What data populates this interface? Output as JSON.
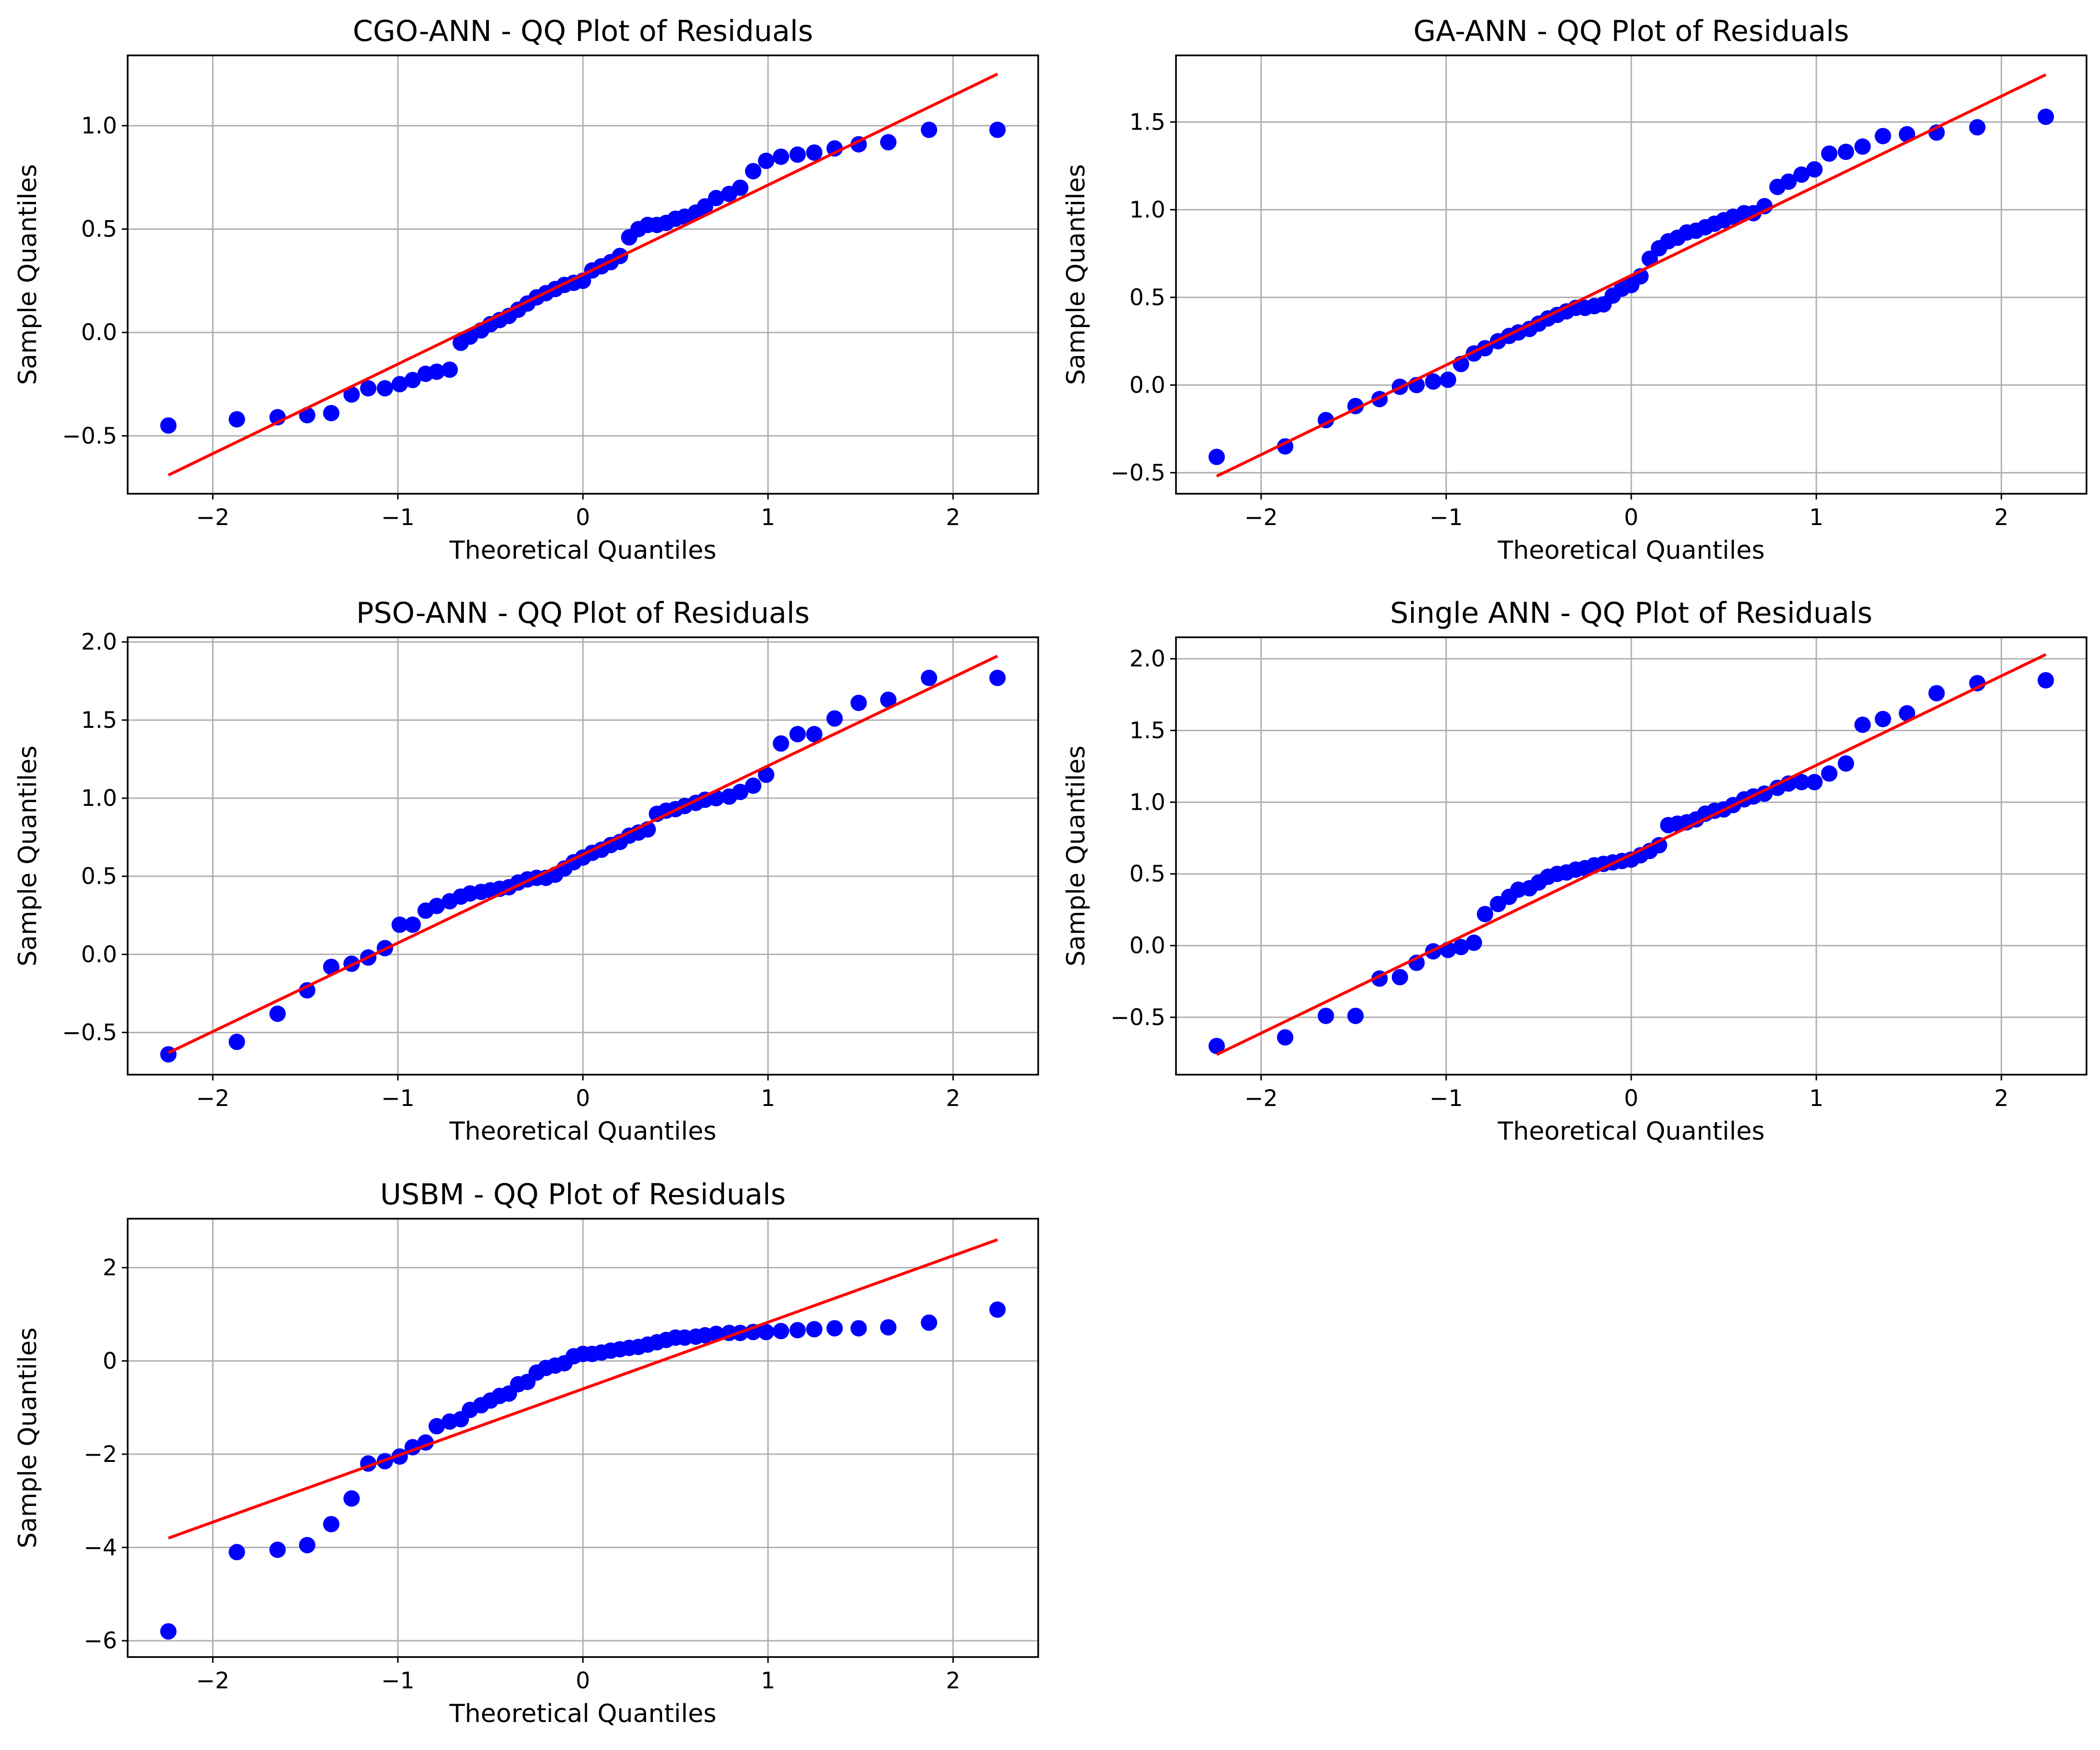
{
  "chart_data": [
    {
      "type": "scatter",
      "title": "CGO-ANN - QQ Plot of Residuals",
      "xlabel": "Theoretical Quantiles",
      "ylabel": "Sample Quantiles",
      "xlim": [
        -2.46,
        2.46
      ],
      "ylim": [
        -0.78,
        1.34
      ],
      "xticks": [
        -2,
        -1,
        0,
        1,
        2
      ],
      "xtick_labels": [
        "−2",
        "−1",
        "0",
        "1",
        "2"
      ],
      "yticks": [
        -0.5,
        0.0,
        0.5,
        1.0
      ],
      "ytick_labels": [
        "−0.5",
        "0.0",
        "0.5",
        "1.0"
      ],
      "grid": true,
      "point_color": "#0000ff",
      "line_color": "#ff0000",
      "line": {
        "x": [
          -2.24,
          2.24
        ],
        "y": [
          -0.69,
          1.25
        ]
      },
      "points": {
        "x": [
          -2.24,
          -1.87,
          -1.65,
          -1.49,
          -1.36,
          -1.25,
          -1.16,
          -1.07,
          -0.99,
          -0.92,
          -0.85,
          -0.79,
          -0.72,
          -0.66,
          -0.61,
          -0.55,
          -0.5,
          -0.45,
          -0.4,
          -0.35,
          -0.3,
          -0.25,
          -0.2,
          -0.15,
          -0.1,
          -0.05,
          0.0,
          0.05,
          0.1,
          0.15,
          0.2,
          0.25,
          0.3,
          0.35,
          0.4,
          0.45,
          0.5,
          0.55,
          0.61,
          0.66,
          0.72,
          0.79,
          0.85,
          0.92,
          0.99,
          1.07,
          1.16,
          1.25,
          1.36,
          1.49,
          1.65,
          1.87,
          2.24
        ],
        "y": [
          -0.45,
          -0.42,
          -0.41,
          -0.4,
          -0.39,
          -0.3,
          -0.27,
          -0.27,
          -0.25,
          -0.23,
          -0.2,
          -0.19,
          -0.18,
          -0.05,
          -0.02,
          0.01,
          0.04,
          0.06,
          0.08,
          0.11,
          0.14,
          0.17,
          0.19,
          0.21,
          0.23,
          0.24,
          0.25,
          0.3,
          0.32,
          0.34,
          0.37,
          0.46,
          0.5,
          0.52,
          0.52,
          0.53,
          0.55,
          0.56,
          0.58,
          0.61,
          0.65,
          0.67,
          0.7,
          0.78,
          0.83,
          0.85,
          0.86,
          0.87,
          0.89,
          0.91,
          0.92,
          0.98,
          0.98
        ]
      }
    },
    {
      "type": "scatter",
      "title": "GA-ANN - QQ Plot of Residuals",
      "xlabel": "Theoretical Quantiles",
      "ylabel": "Sample Quantiles",
      "xlim": [
        -2.46,
        2.46
      ],
      "ylim": [
        -0.62,
        1.88
      ],
      "xticks": [
        -2,
        -1,
        0,
        1,
        2
      ],
      "xtick_labels": [
        "−2",
        "−1",
        "0",
        "1",
        "2"
      ],
      "yticks": [
        -0.5,
        0.0,
        0.5,
        1.0,
        1.5
      ],
      "ytick_labels": [
        "−0.5",
        "0.0",
        "0.5",
        "1.0",
        "1.5"
      ],
      "grid": true,
      "point_color": "#0000ff",
      "line_color": "#ff0000",
      "line": {
        "x": [
          -2.24,
          2.24
        ],
        "y": [
          -0.52,
          1.77
        ]
      },
      "points": {
        "x": [
          -2.24,
          -1.87,
          -1.65,
          -1.49,
          -1.36,
          -1.25,
          -1.16,
          -1.07,
          -0.99,
          -0.92,
          -0.85,
          -0.79,
          -0.72,
          -0.66,
          -0.61,
          -0.55,
          -0.5,
          -0.45,
          -0.4,
          -0.35,
          -0.3,
          -0.25,
          -0.2,
          -0.15,
          -0.1,
          -0.05,
          0.0,
          0.05,
          0.1,
          0.15,
          0.2,
          0.25,
          0.3,
          0.35,
          0.4,
          0.45,
          0.5,
          0.55,
          0.61,
          0.66,
          0.72,
          0.79,
          0.85,
          0.92,
          0.99,
          1.07,
          1.16,
          1.25,
          1.36,
          1.49,
          1.65,
          1.87,
          2.24
        ],
        "y": [
          -0.41,
          -0.35,
          -0.2,
          -0.12,
          -0.08,
          -0.01,
          0.0,
          0.02,
          0.03,
          0.12,
          0.18,
          0.21,
          0.25,
          0.28,
          0.3,
          0.32,
          0.35,
          0.38,
          0.4,
          0.42,
          0.44,
          0.44,
          0.45,
          0.46,
          0.51,
          0.55,
          0.57,
          0.62,
          0.72,
          0.78,
          0.82,
          0.84,
          0.87,
          0.88,
          0.9,
          0.92,
          0.94,
          0.96,
          0.98,
          0.98,
          1.02,
          1.13,
          1.16,
          1.2,
          1.23,
          1.32,
          1.33,
          1.36,
          1.42,
          1.43,
          1.44,
          1.47,
          1.53
        ]
      }
    },
    {
      "type": "scatter",
      "title": "PSO-ANN - QQ Plot of Residuals",
      "xlabel": "Theoretical Quantiles",
      "ylabel": "Sample Quantiles",
      "xlim": [
        -2.46,
        2.46
      ],
      "ylim": [
        -0.77,
        2.03
      ],
      "xticks": [
        -2,
        -1,
        0,
        1,
        2
      ],
      "xtick_labels": [
        "−2",
        "−1",
        "0",
        "1",
        "2"
      ],
      "yticks": [
        -0.5,
        0.0,
        0.5,
        1.0,
        1.5,
        2.0
      ],
      "ytick_labels": [
        "−0.5",
        "0.0",
        "0.5",
        "1.0",
        "1.5",
        "2.0"
      ],
      "grid": true,
      "point_color": "#0000ff",
      "line_color": "#ff0000",
      "line": {
        "x": [
          -2.24,
          2.24
        ],
        "y": [
          -0.63,
          1.91
        ]
      },
      "points": {
        "x": [
          -2.24,
          -1.87,
          -1.65,
          -1.49,
          -1.36,
          -1.25,
          -1.16,
          -1.07,
          -0.99,
          -0.92,
          -0.85,
          -0.79,
          -0.72,
          -0.66,
          -0.61,
          -0.55,
          -0.5,
          -0.45,
          -0.4,
          -0.35,
          -0.3,
          -0.25,
          -0.2,
          -0.15,
          -0.1,
          -0.05,
          0.0,
          0.05,
          0.1,
          0.15,
          0.2,
          0.25,
          0.3,
          0.35,
          0.4,
          0.45,
          0.5,
          0.55,
          0.61,
          0.66,
          0.72,
          0.79,
          0.85,
          0.92,
          0.99,
          1.07,
          1.16,
          1.25,
          1.36,
          1.49,
          1.65,
          1.87,
          2.24
        ],
        "y": [
          -0.64,
          -0.56,
          -0.38,
          -0.23,
          -0.08,
          -0.06,
          -0.02,
          0.04,
          0.19,
          0.19,
          0.28,
          0.31,
          0.34,
          0.37,
          0.39,
          0.4,
          0.41,
          0.42,
          0.43,
          0.46,
          0.48,
          0.49,
          0.49,
          0.51,
          0.55,
          0.59,
          0.62,
          0.65,
          0.67,
          0.7,
          0.72,
          0.76,
          0.78,
          0.8,
          0.9,
          0.92,
          0.93,
          0.95,
          0.97,
          0.99,
          1.0,
          1.01,
          1.04,
          1.08,
          1.15,
          1.35,
          1.41,
          1.41,
          1.51,
          1.61,
          1.63,
          1.77,
          1.77
        ]
      }
    },
    {
      "type": "scatter",
      "title": "Single ANN - QQ Plot of Residuals",
      "xlabel": "Theoretical Quantiles",
      "ylabel": "Sample Quantiles",
      "xlim": [
        -2.46,
        2.46
      ],
      "ylim": [
        -0.9,
        2.15
      ],
      "xticks": [
        -2,
        -1,
        0,
        1,
        2
      ],
      "xtick_labels": [
        "−2",
        "−1",
        "0",
        "1",
        "2"
      ],
      "yticks": [
        -0.5,
        0.0,
        0.5,
        1.0,
        1.5,
        2.0
      ],
      "ytick_labels": [
        "−0.5",
        "0.0",
        "0.5",
        "1.0",
        "1.5",
        "2.0"
      ],
      "grid": true,
      "point_color": "#0000ff",
      "line_color": "#ff0000",
      "line": {
        "x": [
          -2.24,
          2.24
        ],
        "y": [
          -0.76,
          2.03
        ]
      },
      "points": {
        "x": [
          -2.24,
          -1.87,
          -1.65,
          -1.49,
          -1.36,
          -1.25,
          -1.16,
          -1.07,
          -0.99,
          -0.92,
          -0.85,
          -0.79,
          -0.72,
          -0.66,
          -0.61,
          -0.55,
          -0.5,
          -0.45,
          -0.4,
          -0.35,
          -0.3,
          -0.25,
          -0.2,
          -0.15,
          -0.1,
          -0.05,
          0.0,
          0.05,
          0.1,
          0.15,
          0.2,
          0.25,
          0.3,
          0.35,
          0.4,
          0.45,
          0.5,
          0.55,
          0.61,
          0.66,
          0.72,
          0.79,
          0.85,
          0.92,
          0.99,
          1.07,
          1.16,
          1.25,
          1.36,
          1.49,
          1.65,
          1.87,
          2.24
        ],
        "y": [
          -0.7,
          -0.64,
          -0.49,
          -0.49,
          -0.23,
          -0.22,
          -0.12,
          -0.04,
          -0.03,
          -0.01,
          0.02,
          0.22,
          0.29,
          0.34,
          0.39,
          0.4,
          0.44,
          0.48,
          0.5,
          0.51,
          0.53,
          0.54,
          0.56,
          0.57,
          0.58,
          0.59,
          0.6,
          0.63,
          0.66,
          0.7,
          0.84,
          0.85,
          0.86,
          0.88,
          0.92,
          0.94,
          0.95,
          0.98,
          1.02,
          1.04,
          1.06,
          1.1,
          1.13,
          1.14,
          1.14,
          1.2,
          1.27,
          1.54,
          1.58,
          1.62,
          1.76,
          1.83,
          1.85
        ]
      }
    },
    {
      "type": "scatter",
      "title": "USBM - QQ Plot of Residuals",
      "xlabel": "Theoretical Quantiles",
      "ylabel": "Sample Quantiles",
      "xlim": [
        -2.46,
        2.46
      ],
      "ylim": [
        -6.35,
        3.05
      ],
      "xticks": [
        -2,
        -1,
        0,
        1,
        2
      ],
      "xtick_labels": [
        "−2",
        "−1",
        "0",
        "1",
        "2"
      ],
      "yticks": [
        -6,
        -4,
        -2,
        0,
        2
      ],
      "ytick_labels": [
        "−6",
        "−4",
        "−2",
        "0",
        "2"
      ],
      "grid": true,
      "point_color": "#0000ff",
      "line_color": "#ff0000",
      "line": {
        "x": [
          -2.24,
          2.24
        ],
        "y": [
          -3.8,
          2.6
        ]
      },
      "points": {
        "x": [
          -2.24,
          -1.87,
          -1.65,
          -1.49,
          -1.36,
          -1.25,
          -1.16,
          -1.07,
          -0.99,
          -0.92,
          -0.85,
          -0.79,
          -0.72,
          -0.66,
          -0.61,
          -0.55,
          -0.5,
          -0.45,
          -0.4,
          -0.35,
          -0.3,
          -0.25,
          -0.2,
          -0.15,
          -0.1,
          -0.05,
          0.0,
          0.05,
          0.1,
          0.15,
          0.2,
          0.25,
          0.3,
          0.35,
          0.4,
          0.45,
          0.5,
          0.55,
          0.61,
          0.66,
          0.72,
          0.79,
          0.85,
          0.92,
          0.99,
          1.07,
          1.16,
          1.25,
          1.36,
          1.49,
          1.65,
          1.87,
          2.24
        ],
        "y": [
          -5.8,
          -4.1,
          -4.05,
          -3.95,
          -3.5,
          -2.95,
          -2.2,
          -2.15,
          -2.05,
          -1.85,
          -1.75,
          -1.4,
          -1.3,
          -1.25,
          -1.05,
          -0.95,
          -0.85,
          -0.75,
          -0.7,
          -0.5,
          -0.45,
          -0.25,
          -0.15,
          -0.1,
          -0.05,
          0.1,
          0.15,
          0.15,
          0.18,
          0.22,
          0.25,
          0.28,
          0.3,
          0.35,
          0.4,
          0.45,
          0.5,
          0.5,
          0.52,
          0.55,
          0.58,
          0.6,
          0.6,
          0.62,
          0.62,
          0.64,
          0.66,
          0.68,
          0.7,
          0.7,
          0.72,
          0.82,
          1.1
        ]
      }
    }
  ]
}
